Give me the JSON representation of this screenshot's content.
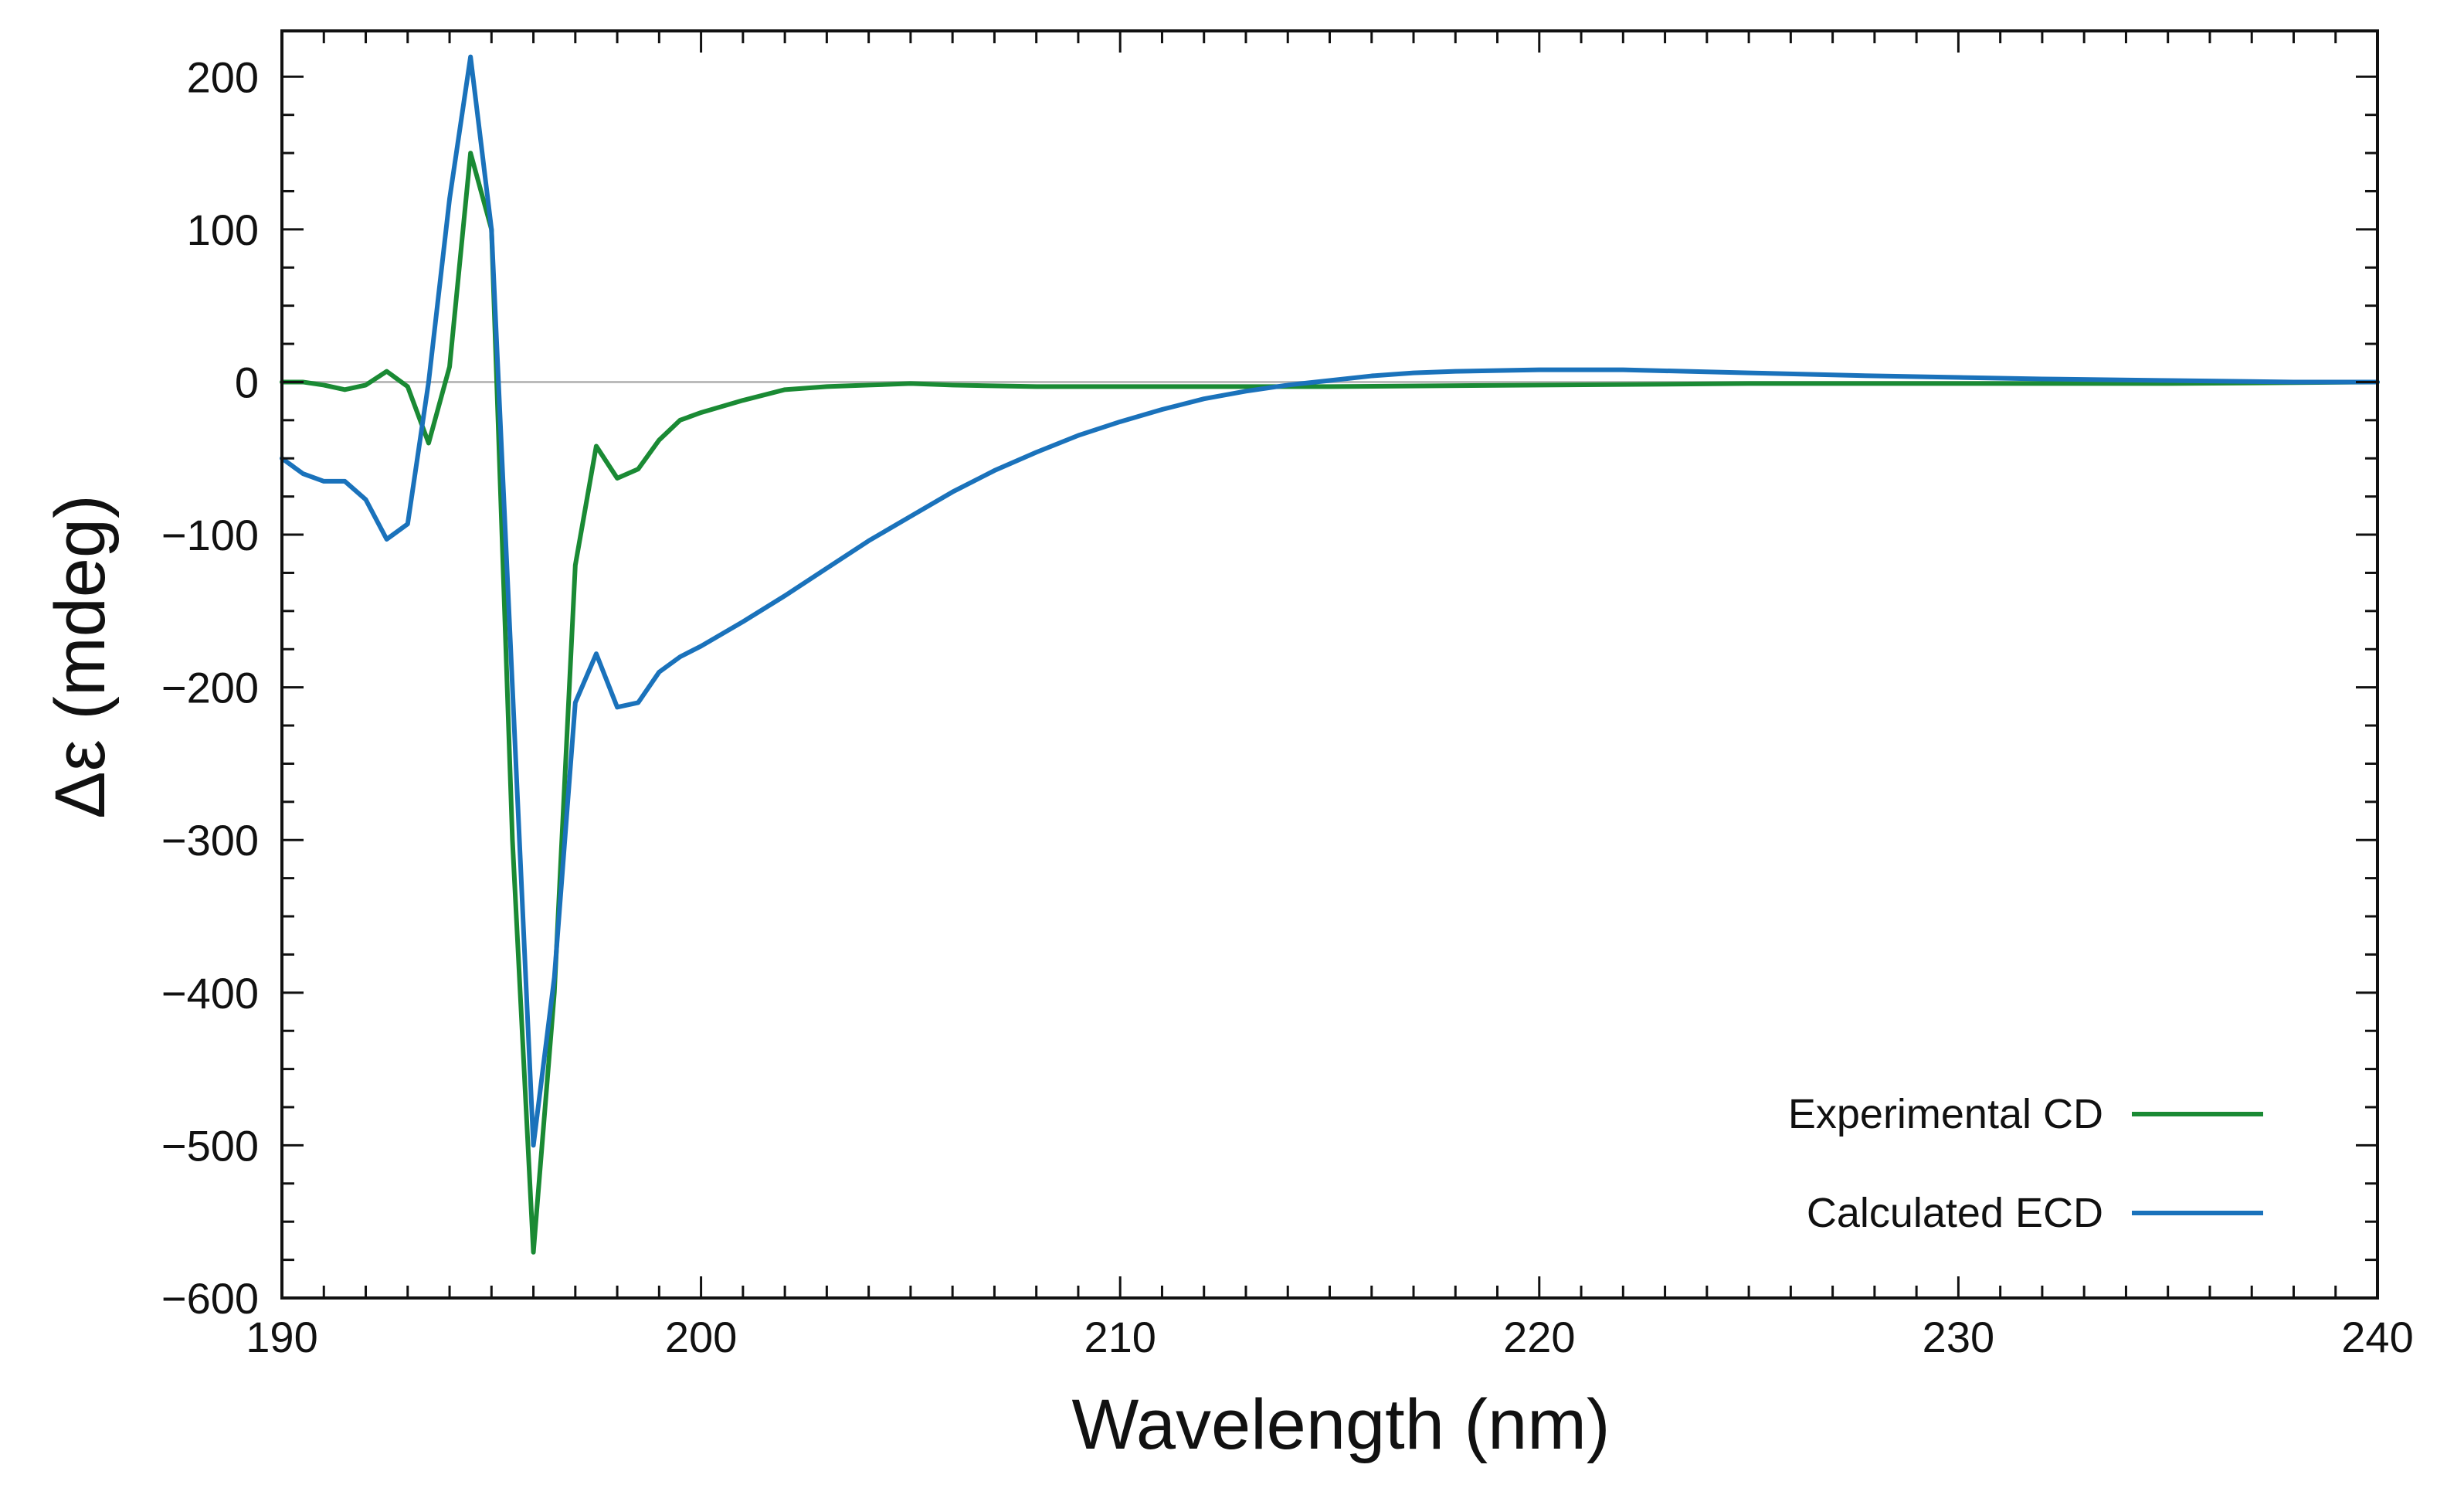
{
  "chart_data": {
    "type": "line",
    "title": "",
    "xlabel": "Wavelength (nm)",
    "ylabel": "Δε (mdeg)",
    "xlim": [
      190,
      240
    ],
    "ylim": [
      -600,
      230
    ],
    "xticks": [
      190,
      200,
      210,
      220,
      230,
      240
    ],
    "xtick_labels": [
      "190",
      "200",
      "210",
      "220",
      "230",
      "240"
    ],
    "yticks": [
      200,
      100,
      0,
      -100,
      -200,
      -300,
      -400,
      -500,
      -600
    ],
    "ytick_labels": [
      "200",
      "100",
      "0",
      "−100",
      "−200",
      "−300",
      "−400",
      "−500",
      "−600"
    ],
    "zero_line": true,
    "legend_position": "bottom-right",
    "series": [
      {
        "name": "Experimental CD",
        "color": "#1a8a34",
        "x": [
          190,
          190.5,
          191,
          191.5,
          192,
          192.5,
          193,
          193.5,
          194,
          194.5,
          195,
          195.5,
          196,
          196.5,
          197,
          197.5,
          198,
          198.5,
          199,
          199.5,
          200,
          201,
          202,
          203,
          204,
          205,
          206,
          208,
          210,
          212,
          215,
          220,
          225,
          230,
          235,
          240
        ],
        "y": [
          0,
          0,
          -2,
          -5,
          -2,
          7,
          -3,
          -40,
          10,
          150,
          100,
          -300,
          -570,
          -400,
          -120,
          -42,
          -63,
          -57,
          -38,
          -25,
          -20,
          -12,
          -5,
          -3,
          -2,
          -1,
          -2,
          -3,
          -3,
          -3,
          -3,
          -2,
          -1,
          -1,
          -1,
          0
        ]
      },
      {
        "name": "Calculated ECD",
        "color": "#1a72bb",
        "x": [
          190,
          190.5,
          191,
          191.5,
          192,
          192.5,
          193,
          193.5,
          194,
          194.5,
          195,
          195.5,
          196,
          196.5,
          197,
          197.5,
          198,
          198.5,
          199,
          199.5,
          200,
          201,
          202,
          203,
          204,
          205,
          206,
          207,
          208,
          209,
          210,
          211,
          212,
          213,
          214,
          215,
          216,
          217,
          218,
          220,
          222,
          225,
          228,
          230,
          232,
          235,
          238,
          240
        ],
        "y": [
          -50,
          -60,
          -65,
          -65,
          -77,
          -103,
          -93,
          0,
          120,
          213,
          100,
          -200,
          -500,
          -390,
          -210,
          -178,
          -213,
          -210,
          -190,
          -180,
          -173,
          -157,
          -140,
          -122,
          -104,
          -88,
          -72,
          -58,
          -46,
          -35,
          -26,
          -18,
          -11,
          -6,
          -2,
          1,
          4,
          6,
          7,
          8,
          8,
          6,
          4,
          3,
          2,
          1,
          0,
          0
        ]
      }
    ]
  }
}
